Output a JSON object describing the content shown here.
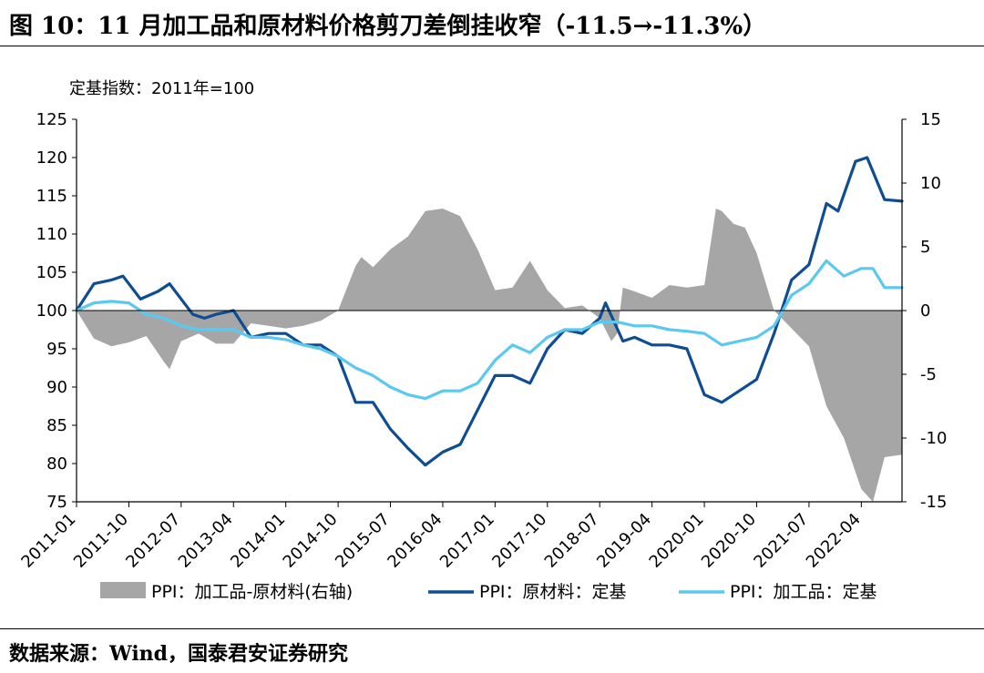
{
  "title": "图 10：11 月加工品和原材料价格剪刀差倒挂收窄（-11.5→-11.3%）",
  "source": "数据来源：Wind，国泰君安证券研究",
  "chart_data": {
    "type": "line+area",
    "note": "定基指数：2011年=100",
    "x_ticks": [
      "2011-01",
      "2011-10",
      "2012-07",
      "2013-04",
      "2014-01",
      "2014-10",
      "2015-07",
      "2016-04",
      "2017-01",
      "2017-10",
      "2018-07",
      "2019-04",
      "2020-01",
      "2020-10",
      "2021-07",
      "2022-04"
    ],
    "left_axis": {
      "ylim": [
        75,
        125
      ],
      "ticks": [
        "125",
        "120",
        "115",
        "110",
        "105",
        "100",
        "95",
        "90",
        "85",
        "80",
        "75"
      ]
    },
    "right_axis": {
      "ylim": [
        -15,
        15
      ],
      "ticks": [
        "15",
        "10",
        "5",
        "0",
        "-5",
        "-10",
        "-15"
      ]
    },
    "legend": [
      "PPI：加工品-原材料(右轴)",
      "PPI：原材料：定基",
      "PPI：加工品：定基"
    ],
    "colors": {
      "spread": "#a6a6a6",
      "raw": "#0f4d92",
      "processed": "#5bc8f0"
    },
    "series": [
      {
        "name": "PPI：加工品-原材料(右轴)",
        "axis": "right",
        "kind": "area",
        "points": [
          [
            "2011-01",
            0
          ],
          [
            "2011-04",
            -2.2
          ],
          [
            "2011-07",
            -2.8
          ],
          [
            "2011-10",
            -2.5
          ],
          [
            "2012-01",
            -2.0
          ],
          [
            "2012-04",
            -4.0
          ],
          [
            "2012-05",
            -4.6
          ],
          [
            "2012-07",
            -2.4
          ],
          [
            "2012-10",
            -1.8
          ],
          [
            "2013-01",
            -2.6
          ],
          [
            "2013-04",
            -2.6
          ],
          [
            "2013-07",
            -1.0
          ],
          [
            "2013-10",
            -1.2
          ],
          [
            "2014-01",
            -1.4
          ],
          [
            "2014-04",
            -1.2
          ],
          [
            "2014-07",
            -0.8
          ],
          [
            "2014-10",
            0
          ],
          [
            "2015-01",
            3.5
          ],
          [
            "2015-02",
            4.2
          ],
          [
            "2015-04",
            3.4
          ],
          [
            "2015-07",
            4.8
          ],
          [
            "2015-10",
            5.8
          ],
          [
            "2016-01",
            7.8
          ],
          [
            "2016-04",
            8.0
          ],
          [
            "2016-07",
            7.4
          ],
          [
            "2016-10",
            4.8
          ],
          [
            "2017-01",
            1.6
          ],
          [
            "2017-04",
            1.8
          ],
          [
            "2017-07",
            3.9
          ],
          [
            "2017-10",
            1.6
          ],
          [
            "2018-01",
            0.2
          ],
          [
            "2018-04",
            0.4
          ],
          [
            "2018-07",
            -0.6
          ],
          [
            "2018-09",
            -2.4
          ],
          [
            "2018-10",
            -1.8
          ],
          [
            "2018-11",
            1.8
          ],
          [
            "2019-01",
            1.5
          ],
          [
            "2019-04",
            1.0
          ],
          [
            "2019-07",
            2.0
          ],
          [
            "2019-10",
            1.8
          ],
          [
            "2020-01",
            2.0
          ],
          [
            "2020-03",
            8.0
          ],
          [
            "2020-04",
            7.8
          ],
          [
            "2020-06",
            6.8
          ],
          [
            "2020-08",
            6.5
          ],
          [
            "2020-10",
            4.5
          ],
          [
            "2021-01",
            0
          ],
          [
            "2021-04",
            -1.4
          ],
          [
            "2021-07",
            -2.8
          ],
          [
            "2021-10",
            -7.5
          ],
          [
            "2022-01",
            -10.0
          ],
          [
            "2022-04",
            -14.0
          ],
          [
            "2022-06",
            -15.0
          ],
          [
            "2022-08",
            -11.5
          ],
          [
            "2022-11",
            -11.3
          ]
        ]
      },
      {
        "name": "PPI：原材料：定基",
        "axis": "left",
        "kind": "line",
        "points": [
          [
            "2011-01",
            100
          ],
          [
            "2011-04",
            103.5
          ],
          [
            "2011-07",
            104
          ],
          [
            "2011-09",
            104.5
          ],
          [
            "2011-12",
            101.5
          ],
          [
            "2012-03",
            102.5
          ],
          [
            "2012-05",
            103.5
          ],
          [
            "2012-09",
            99.5
          ],
          [
            "2012-11",
            99
          ],
          [
            "2013-01",
            99.5
          ],
          [
            "2013-04",
            100
          ],
          [
            "2013-07",
            96.5
          ],
          [
            "2013-10",
            97
          ],
          [
            "2014-01",
            97
          ],
          [
            "2014-04",
            95.5
          ],
          [
            "2014-07",
            95.5
          ],
          [
            "2014-10",
            94
          ],
          [
            "2015-01",
            88
          ],
          [
            "2015-04",
            88
          ],
          [
            "2015-07",
            84.5
          ],
          [
            "2015-10",
            82
          ],
          [
            "2016-01",
            79.8
          ],
          [
            "2016-04",
            81.5
          ],
          [
            "2016-07",
            82.5
          ],
          [
            "2016-10",
            87
          ],
          [
            "2017-01",
            91.5
          ],
          [
            "2017-04",
            91.5
          ],
          [
            "2017-07",
            90.5
          ],
          [
            "2017-10",
            95
          ],
          [
            "2018-01",
            97.5
          ],
          [
            "2018-04",
            97
          ],
          [
            "2018-07",
            99
          ],
          [
            "2018-08",
            101
          ],
          [
            "2018-11",
            96
          ],
          [
            "2019-01",
            96.5
          ],
          [
            "2019-04",
            95.5
          ],
          [
            "2019-07",
            95.5
          ],
          [
            "2019-10",
            95
          ],
          [
            "2020-01",
            89
          ],
          [
            "2020-04",
            88
          ],
          [
            "2020-07",
            89.5
          ],
          [
            "2020-10",
            91
          ],
          [
            "2021-01",
            97
          ],
          [
            "2021-04",
            104
          ],
          [
            "2021-07",
            106
          ],
          [
            "2021-10",
            114
          ],
          [
            "2021-12",
            113
          ],
          [
            "2022-03",
            119.5
          ],
          [
            "2022-05",
            120
          ],
          [
            "2022-08",
            114.5
          ],
          [
            "2022-11",
            114.3
          ]
        ]
      },
      {
        "name": "PPI：加工品：定基",
        "axis": "left",
        "kind": "line",
        "points": [
          [
            "2011-01",
            100
          ],
          [
            "2011-04",
            101
          ],
          [
            "2011-07",
            101.2
          ],
          [
            "2011-10",
            101
          ],
          [
            "2012-01",
            99.5
          ],
          [
            "2012-04",
            99
          ],
          [
            "2012-07",
            98
          ],
          [
            "2012-10",
            97.5
          ],
          [
            "2013-01",
            97.5
          ],
          [
            "2013-04",
            97.5
          ],
          [
            "2013-07",
            96.5
          ],
          [
            "2013-10",
            96.5
          ],
          [
            "2014-01",
            96.2
          ],
          [
            "2014-04",
            95.5
          ],
          [
            "2014-07",
            95
          ],
          [
            "2014-10",
            94
          ],
          [
            "2015-01",
            92.5
          ],
          [
            "2015-04",
            91.5
          ],
          [
            "2015-07",
            90
          ],
          [
            "2015-10",
            89
          ],
          [
            "2016-01",
            88.5
          ],
          [
            "2016-04",
            89.5
          ],
          [
            "2016-07",
            89.5
          ],
          [
            "2016-10",
            90.5
          ],
          [
            "2017-01",
            93.5
          ],
          [
            "2017-04",
            95.5
          ],
          [
            "2017-07",
            94.5
          ],
          [
            "2017-10",
            96.5
          ],
          [
            "2018-01",
            97.5
          ],
          [
            "2018-04",
            97.5
          ],
          [
            "2018-07",
            98.5
          ],
          [
            "2018-10",
            98.5
          ],
          [
            "2019-01",
            98
          ],
          [
            "2019-04",
            98
          ],
          [
            "2019-07",
            97.5
          ],
          [
            "2019-10",
            97.3
          ],
          [
            "2020-01",
            97
          ],
          [
            "2020-04",
            95.5
          ],
          [
            "2020-07",
            96
          ],
          [
            "2020-10",
            96.5
          ],
          [
            "2021-01",
            98
          ],
          [
            "2021-04",
            102
          ],
          [
            "2021-07",
            103.5
          ],
          [
            "2021-10",
            106.5
          ],
          [
            "2022-01",
            104.5
          ],
          [
            "2022-04",
            105.5
          ],
          [
            "2022-06",
            105.5
          ],
          [
            "2022-08",
            103
          ],
          [
            "2022-11",
            103
          ]
        ]
      }
    ]
  }
}
